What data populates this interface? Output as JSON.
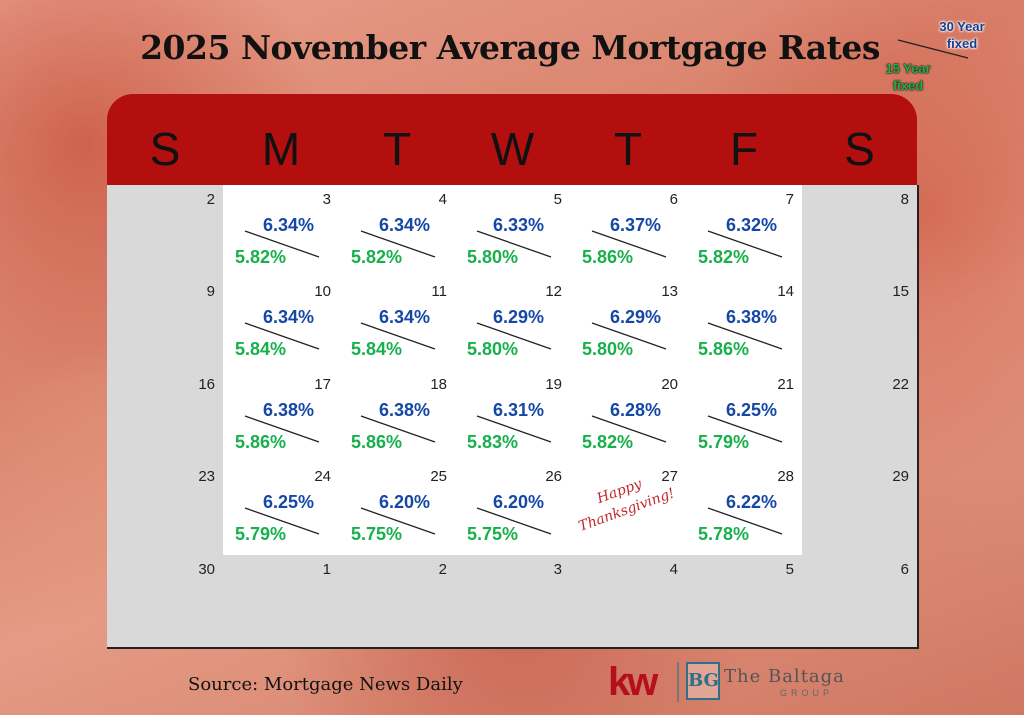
{
  "title": "2025 November Average Mortgage Rates",
  "legend": {
    "thirty_year": "30 Year fixed",
    "fifteen_year": "15 Year fixed"
  },
  "weekdays": [
    "S",
    "M",
    "T",
    "W",
    "T",
    "F",
    "S"
  ],
  "colors": {
    "header": "#b30f0f",
    "thirty": "#1548a6",
    "fifteen": "#17b04c"
  },
  "weeks": [
    [
      {
        "day": "2"
      },
      {
        "day": "3",
        "r30": "6.34%",
        "r15": "5.82%"
      },
      {
        "day": "4",
        "r30": "6.34%",
        "r15": "5.82%"
      },
      {
        "day": "5",
        "r30": "6.33%",
        "r15": "5.80%"
      },
      {
        "day": "6",
        "r30": "6.37%",
        "r15": "5.86%"
      },
      {
        "day": "7",
        "r30": "6.32%",
        "r15": "5.82%"
      },
      {
        "day": "8"
      }
    ],
    [
      {
        "day": "9"
      },
      {
        "day": "10",
        "r30": "6.34%",
        "r15": "5.84%"
      },
      {
        "day": "11",
        "r30": "6.34%",
        "r15": "5.84%"
      },
      {
        "day": "12",
        "r30": "6.29%",
        "r15": "5.80%"
      },
      {
        "day": "13",
        "r30": "6.29%",
        "r15": "5.80%"
      },
      {
        "day": "14",
        "r30": "6.38%",
        "r15": "5.86%"
      },
      {
        "day": "15"
      }
    ],
    [
      {
        "day": "16"
      },
      {
        "day": "17",
        "r30": "6.38%",
        "r15": "5.86%"
      },
      {
        "day": "18",
        "r30": "6.38%",
        "r15": "5.86%"
      },
      {
        "day": "19",
        "r30": "6.31%",
        "r15": "5.83%"
      },
      {
        "day": "20",
        "r30": "6.28%",
        "r15": "5.82%"
      },
      {
        "day": "21",
        "r30": "6.25%",
        "r15": "5.79%"
      },
      {
        "day": "22"
      }
    ],
    [
      {
        "day": "23"
      },
      {
        "day": "24",
        "r30": "6.25%",
        "r15": "5.79%"
      },
      {
        "day": "25",
        "r30": "6.20%",
        "r15": "5.75%"
      },
      {
        "day": "26",
        "r30": "6.20%",
        "r15": "5.75%"
      },
      {
        "day": "27",
        "note": "Happy Thanksgiving!"
      },
      {
        "day": "28",
        "r30": "6.22%",
        "r15": "5.78%"
      },
      {
        "day": "29"
      }
    ],
    [
      {
        "day": "30"
      },
      {
        "day": "1"
      },
      {
        "day": "2"
      },
      {
        "day": "3"
      },
      {
        "day": "4"
      },
      {
        "day": "5"
      },
      {
        "day": "6"
      }
    ]
  ],
  "source": "Source: Mortgage News Daily",
  "branding": {
    "kw": "kw",
    "mark": "BG",
    "name": "The Baltaga",
    "sub": "GROUP"
  }
}
